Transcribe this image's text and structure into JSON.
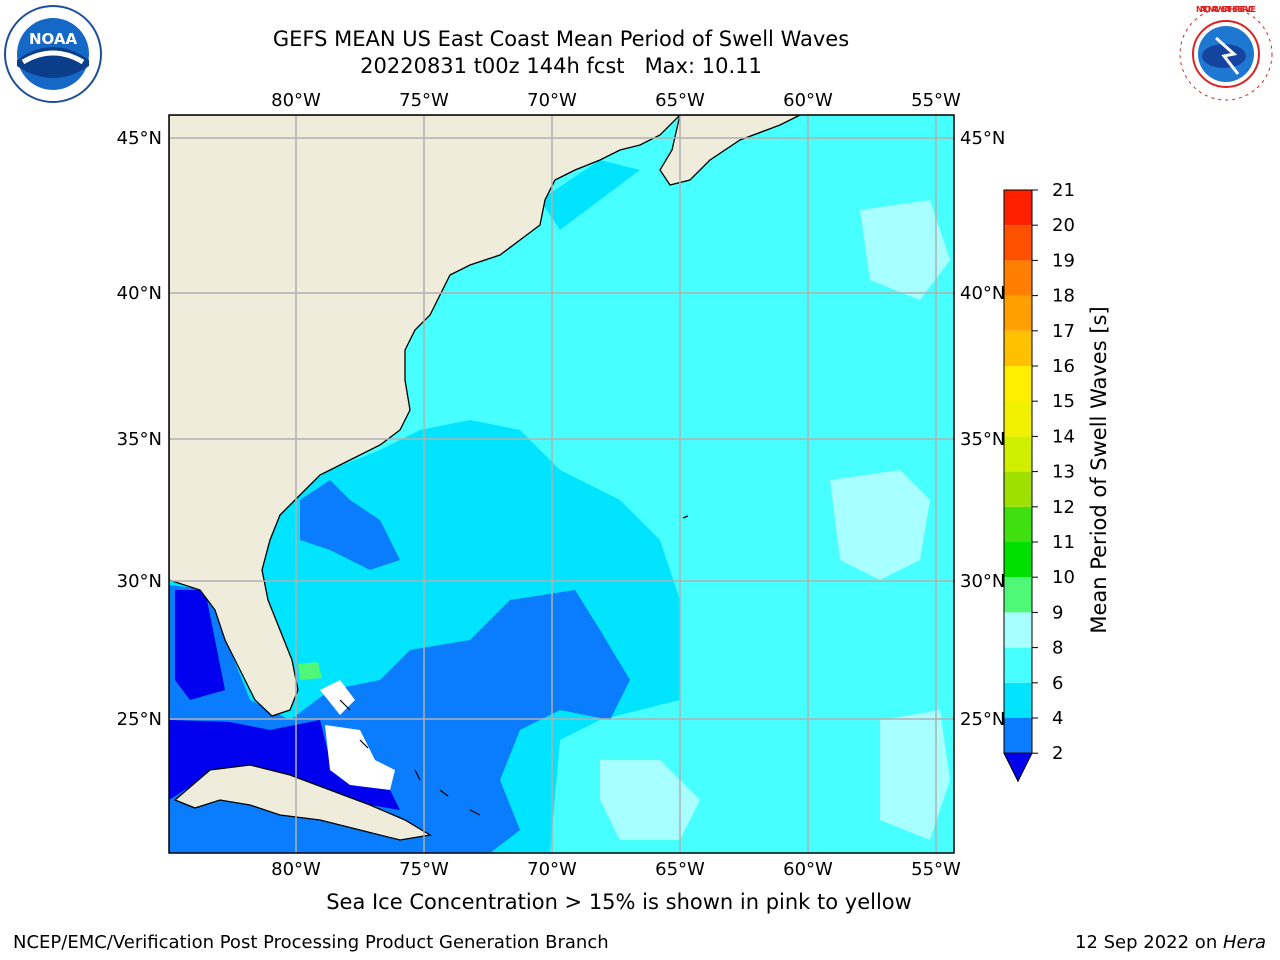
{
  "header": {
    "title_line1": "GEFS MEAN US East Coast Mean Period of Swell Waves",
    "title_line2": "20220831 t00z 144h fcst   Max: 10.11"
  },
  "map": {
    "lon_labels": [
      "80°W",
      "75°W",
      "70°W",
      "65°W",
      "60°W",
      "55°W"
    ],
    "lat_labels": [
      "45°N",
      "40°N",
      "35°N",
      "30°N",
      "25°N"
    ],
    "land_color": "#efecdc",
    "grid_color": "#b0b0b0"
  },
  "colorbar": {
    "label": "Mean Period of Swell Waves [s]",
    "ticks": [
      "2",
      "4",
      "6",
      "8",
      "9",
      "10",
      "11",
      "12",
      "13",
      "14",
      "15",
      "16",
      "17",
      "18",
      "19",
      "20",
      "21"
    ],
    "colors": [
      "#0a7dff",
      "#00e4ff",
      "#48ffff",
      "#a8ffff",
      "#50f878",
      "#00e000",
      "#40e010",
      "#a0e000",
      "#d0f000",
      "#f0f000",
      "#ffee00",
      "#ffc000",
      "#ffa000",
      "#ff8000",
      "#ff5000",
      "#ff2000"
    ],
    "under_color": "#0000ee"
  },
  "footer": {
    "caption": "Sea Ice Concentration > 15% is shown in pink to yellow",
    "credit": "NCEP/EMC/Verification Post Processing Product Generation Branch",
    "date": "12 Sep 2022 on ",
    "machine": "Hera"
  },
  "logos": {
    "noaa_text": "NOAA",
    "nws_text": "NATIONAL WEATHER SERVICE"
  }
}
